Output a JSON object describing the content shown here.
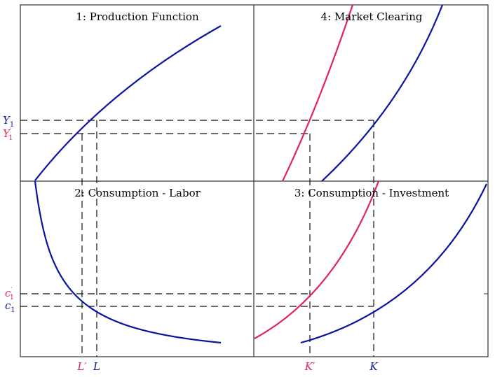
{
  "colors": {
    "blue": "#0a14a0",
    "red": "#e0245e",
    "axis": "#333333"
  },
  "panels": {
    "p1": "1: Production Function",
    "p2": "2: Consumption - Labor",
    "p3": "3: Consumption - Investment",
    "p4": "4: Market Clearing"
  },
  "labels": {
    "Y1": {
      "base": "Y",
      "sub": "1",
      "prime": ""
    },
    "Y1p": {
      "base": "Y",
      "sub": "1",
      "prime": "′"
    },
    "c1p": {
      "base": "c",
      "sub": "1",
      "prime": "′"
    },
    "c1": {
      "base": "c",
      "sub": "1",
      "prime": ""
    },
    "Lp": "L′",
    "L": "L",
    "Kp": "K′",
    "K": "K"
  }
}
